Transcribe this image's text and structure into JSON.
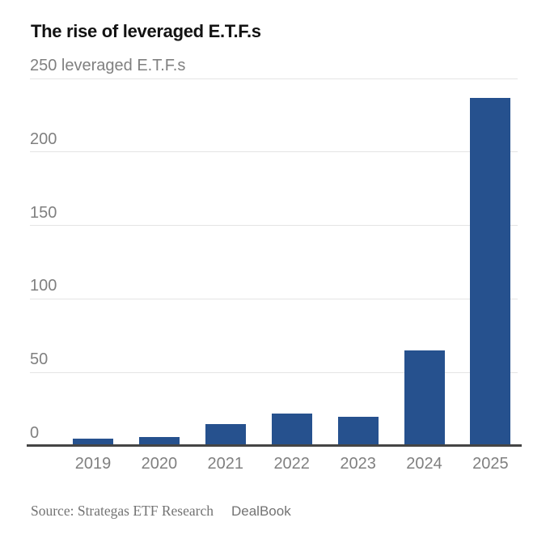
{
  "chart_data": {
    "type": "bar",
    "title": "The rise of leveraged E.T.F.s",
    "categories": [
      "2019",
      "2020",
      "2021",
      "2022",
      "2023",
      "2024",
      "2025"
    ],
    "values": [
      5,
      6,
      15,
      22,
      20,
      65,
      237
    ],
    "xlabel": "",
    "ylabel": "leveraged E.T.F.s",
    "ylim": [
      0,
      250
    ],
    "yticks": [
      0,
      50,
      100,
      150,
      200,
      250
    ],
    "ytick_labels": [
      "0",
      "50",
      "100",
      "150",
      "200",
      "250 leveraged E.T.F.s"
    ],
    "grid": true,
    "legend": "none",
    "bar_color": "#26518e"
  },
  "footer": {
    "source": "Source: Strategas ETF Research",
    "credit": "DealBook"
  },
  "colors": {
    "bar": "#26518e",
    "gridline": "#e4e4e4",
    "axis_line": "#454545",
    "tick_label": "#808080",
    "title": "#121212",
    "footer_text": "#737373",
    "background": "#ffffff"
  }
}
